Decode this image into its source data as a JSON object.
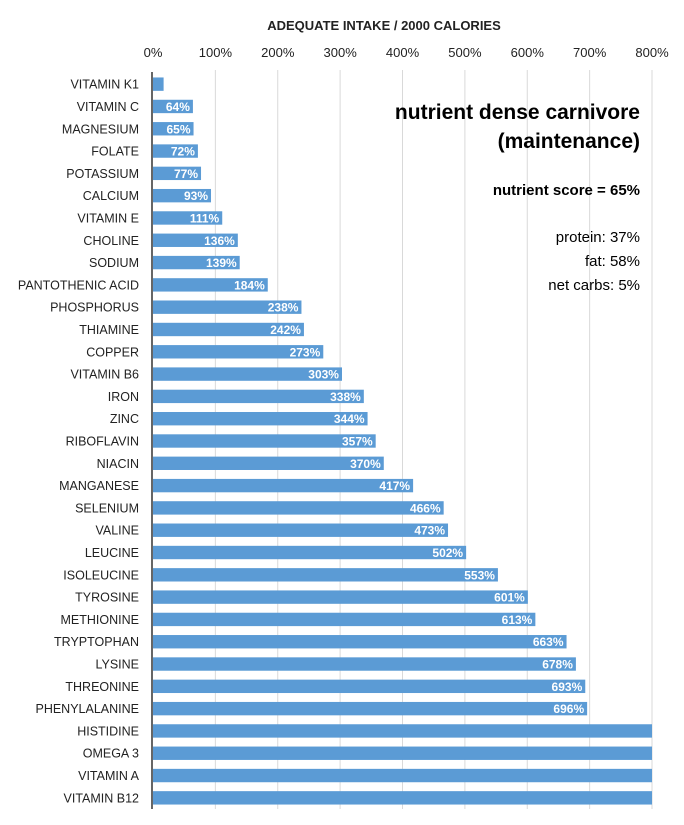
{
  "chart_data": {
    "type": "bar",
    "orientation": "horizontal",
    "title": "ADEQUATE INTAKE / 2000 CALORIES",
    "xlim": [
      0,
      800
    ],
    "x_ticks": [
      "0%",
      "100%",
      "200%",
      "300%",
      "400%",
      "500%",
      "600%",
      "700%",
      "800%"
    ],
    "x_tick_values": [
      0,
      100,
      200,
      300,
      400,
      500,
      600,
      700,
      800
    ],
    "grid": "vertical",
    "bar_color": "#5B9BD5",
    "categories": [
      "VITAMIN K1",
      "VITAMIN C",
      "MAGNESIUM",
      "FOLATE",
      "POTASSIUM",
      "CALCIUM",
      "VITAMIN E",
      "CHOLINE",
      "SODIUM",
      "PANTOTHENIC ACID",
      "PHOSPHORUS",
      "THIAMINE",
      "COPPER",
      "VITAMIN B6",
      "IRON",
      "ZINC",
      "RIBOFLAVIN",
      "NIACIN",
      "MANGANESE",
      "SELENIUM",
      "VALINE",
      "LEUCINE",
      "ISOLEUCINE",
      "TYROSINE",
      "METHIONINE",
      "TRYPTOPHAN",
      "LYSINE",
      "THREONINE",
      "PHENYLALANINE",
      "HISTIDINE",
      "OMEGA 3",
      "VITAMIN A",
      "VITAMIN B12"
    ],
    "values": [
      17,
      64,
      65,
      72,
      77,
      93,
      111,
      136,
      139,
      184,
      238,
      242,
      273,
      303,
      338,
      344,
      357,
      370,
      417,
      466,
      473,
      502,
      553,
      601,
      613,
      663,
      678,
      693,
      696,
      800,
      800,
      800,
      800
    ],
    "data_labels": [
      "",
      "64%",
      "65%",
      "72%",
      "77%",
      "93%",
      "111%",
      "136%",
      "139%",
      "184%",
      "238%",
      "242%",
      "273%",
      "303%",
      "338%",
      "344%",
      "357%",
      "370%",
      "417%",
      "466%",
      "473%",
      "502%",
      "553%",
      "601%",
      "613%",
      "663%",
      "678%",
      "693%",
      "696%",
      "",
      "",
      "",
      ""
    ]
  },
  "annotation": {
    "title_line1": "nutrient dense carnivore",
    "title_line2": "(maintenance)",
    "score": "nutrient score = 65%",
    "protein": "protein: 37%",
    "fat": "fat: 58%",
    "net_carbs": "net carbs: 5%"
  }
}
